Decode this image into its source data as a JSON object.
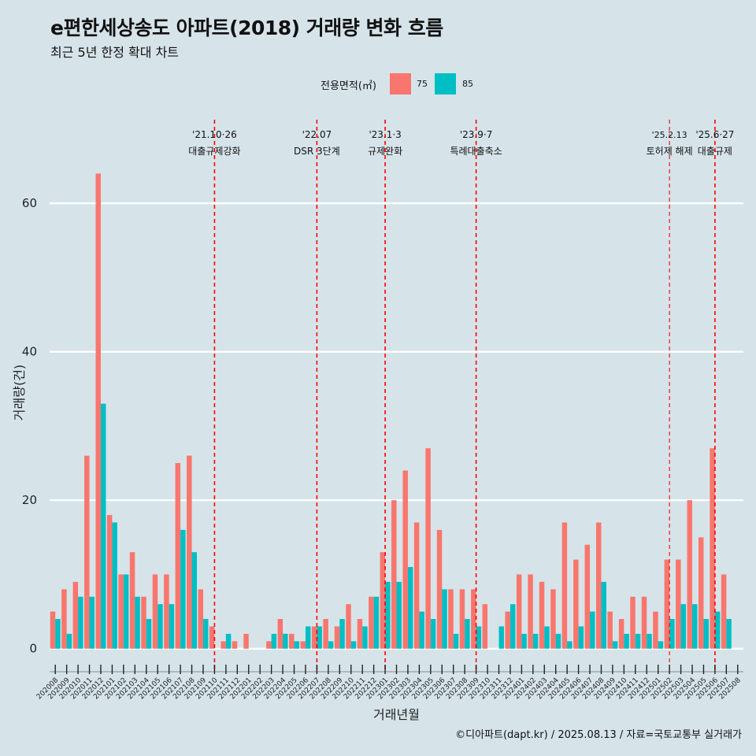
{
  "header": {
    "title": "e편한세상송도 아파트(2018) 거래량 변화 흐름",
    "subtitle": "최근 5년 한정 확대 차트"
  },
  "legend": {
    "title": "전용면적(㎡)",
    "items": [
      {
        "label": "75",
        "color": "#F8766D"
      },
      {
        "label": "85",
        "color": "#00BFC4"
      }
    ]
  },
  "caption": "©디아파트(dapt.kr) / 2025.08.13 / 자료=국토교통부 실거래가",
  "chart_data": {
    "type": "bar",
    "xlabel": "거래년월",
    "ylabel": "거래량(건)",
    "ylim": [
      -3,
      72
    ],
    "yticks": [
      0,
      20,
      40,
      60
    ],
    "categories": [
      "202008",
      "202009",
      "202010",
      "202011",
      "202012",
      "202101",
      "202102",
      "202103",
      "202104",
      "202105",
      "202106",
      "202107",
      "202108",
      "202109",
      "202110",
      "202111",
      "202112",
      "202201",
      "202202",
      "202203",
      "202204",
      "202205",
      "202206",
      "202207",
      "202208",
      "202209",
      "202210",
      "202211",
      "202212",
      "202301",
      "202302",
      "202303",
      "202304",
      "202305",
      "202306",
      "202307",
      "202308",
      "202309",
      "202310",
      "202311",
      "202312",
      "202401",
      "202402",
      "202403",
      "202404",
      "202405",
      "202406",
      "202407",
      "202408",
      "202409",
      "202410",
      "202411",
      "202412",
      "202501",
      "202502",
      "202503",
      "202504",
      "202505",
      "202506",
      "202507",
      "202508"
    ],
    "series": [
      {
        "name": "75",
        "color": "#F8766D",
        "values": [
          5,
          8,
          9,
          26,
          64,
          18,
          10,
          13,
          7,
          10,
          10,
          25,
          26,
          8,
          3,
          1,
          1,
          2,
          0,
          1,
          4,
          2,
          1,
          3,
          4,
          3,
          6,
          4,
          7,
          13,
          20,
          24,
          17,
          27,
          16,
          8,
          8,
          8,
          6,
          0,
          5,
          10,
          10,
          9,
          8,
          17,
          12,
          14,
          17,
          5,
          4,
          7,
          7,
          5,
          12,
          12,
          20,
          15,
          27,
          10,
          0
        ]
      },
      {
        "name": "85",
        "color": "#00BFC4",
        "values": [
          4,
          2,
          7,
          7,
          33,
          17,
          10,
          7,
          4,
          6,
          6,
          16,
          13,
          4,
          0,
          2,
          0,
          0,
          0,
          2,
          2,
          1,
          3,
          3,
          1,
          4,
          1,
          3,
          7,
          9,
          9,
          11,
          5,
          4,
          8,
          2,
          4,
          3,
          0,
          3,
          6,
          2,
          2,
          3,
          2,
          1,
          3,
          5,
          9,
          1,
          2,
          2,
          2,
          1,
          4,
          6,
          6,
          4,
          5,
          4,
          0
        ]
      }
    ],
    "events": [
      {
        "date": "'21.10·26",
        "label": "대출규제강화",
        "at": "202110",
        "offset": 0.0
      },
      {
        "date": "'22.07",
        "label": "DSR 3단계",
        "at": "202207",
        "offset": 0.0
      },
      {
        "date": "'23.1·3",
        "label": "규제완화",
        "at": "202301",
        "offset": 0.0
      },
      {
        "date": "'23.9·7",
        "label": "특례대출축소",
        "at": "202309",
        "offset": 0.0
      },
      {
        "date": "'25.2.13",
        "label": "토허제 해제",
        "at": "202502",
        "offset": 0.0
      },
      {
        "date": "'25.6·27",
        "label": "대출규제",
        "at": "202506",
        "offset": 0.0
      }
    ],
    "grid": true,
    "legend_position": "top"
  }
}
